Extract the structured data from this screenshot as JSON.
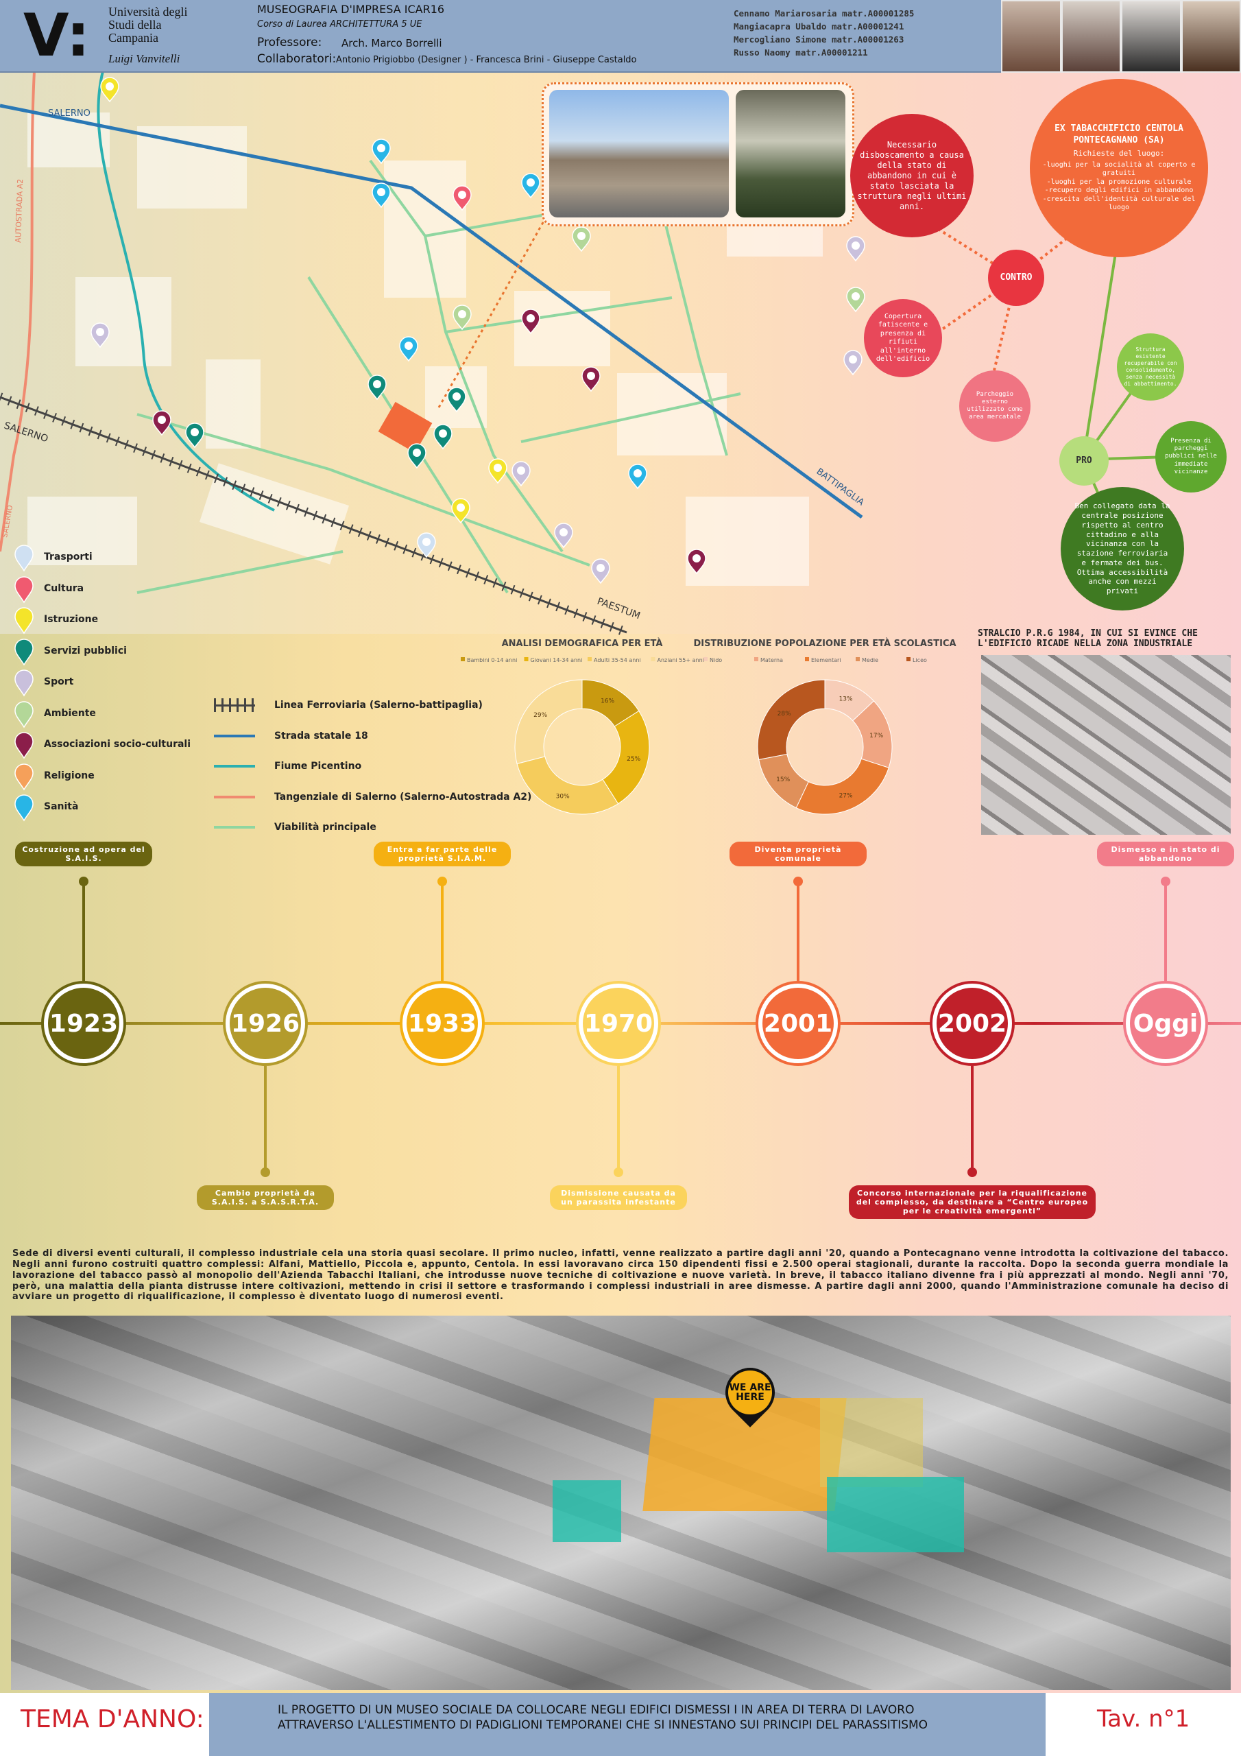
{
  "header": {
    "university": "Università degli Studi della Campania",
    "university_sub": "Luigi Vanvitelli",
    "course_title": "MUSEOGRAFIA D'IMPRESA ICAR16",
    "degree": "Corso di Laurea ARCHITETTURA 5 UE",
    "professor_label": "Professore:",
    "professor": "Arch. Marco Borrelli",
    "collaborators_label": "Collaboratori:",
    "collaborators": "Antonio Prigiobbo (Designer ) - Francesca Brini - Giuseppe Castaldo",
    "students": [
      "Cennamo Mariarosaria matr.A00001285",
      "Mangiacapra Ubaldo matr.A00001241",
      "Mercogliano Simone matr.A00001263",
      "Russo Naomy matr.A00001211"
    ]
  },
  "map": {
    "labels": [
      "SALERNO",
      "AUTOSTRADA A2",
      "SALERNO",
      "SALERNO",
      "BATTIPAGLIA",
      "PAESTUM"
    ]
  },
  "analysis": {
    "main_title": "EX TABACCHIFICIO CENTOLA PONTECAGNANO (SA)",
    "main_subtitle": "Richieste del luogo:",
    "main_lines": [
      "-luoghi per la socialità al coperto e gratuiti",
      "-luoghi per la promozione culturale",
      "-recupero degli edifici in abbandono",
      "-crescita dell'identità culturale del luogo"
    ],
    "contro_label": "CONTRO",
    "contro": [
      "Necessario disboscamento a causa della stato di abbandono in cui è stato lasciata la struttura negli ultimi anni.",
      "Copertura fatiscente e presenza di rifiuti all'interno dell'edificio",
      "Parcheggio esterno utilizzato come area mercatale"
    ],
    "pro_label": "PRO",
    "pro": [
      "Struttura esistente recuperabile con consolidamento, senza necessità di abbattimento.",
      "Presenza di parcheggi pubblici nelle immediate vicinanze",
      "Ben collegato data la centrale posizione rispetto al centro cittadino e alla vicinanza con la stazione ferroviaria e fermate dei bus. Ottima accessibilità anche con mezzi privati"
    ]
  },
  "legend": {
    "poi": [
      {
        "label": "Trasporti",
        "color": "#cfe0f2"
      },
      {
        "label": "Cultura",
        "color": "#f05a70"
      },
      {
        "label": "Istruzione",
        "color": "#f4e42a"
      },
      {
        "label": "Servizi pubblici",
        "color": "#0f8a7a"
      },
      {
        "label": "Sport",
        "color": "#c9c0dc"
      },
      {
        "label": "Ambiente",
        "color": "#b3d798"
      },
      {
        "label": "Associazioni socio-culturali",
        "color": "#8b1e4a"
      },
      {
        "label": "Religione",
        "color": "#f5a05a"
      },
      {
        "label": "Sanità",
        "color": "#28b5e6"
      }
    ],
    "lines": [
      {
        "label": "Linea Ferroviaria (Salerno-battipaglia)",
        "color": "#444444"
      },
      {
        "label": "Strada statale 18",
        "color": "#2a78b5"
      },
      {
        "label": "Fiume Picentino",
        "color": "#2ab0b0"
      },
      {
        "label": "Tangenziale di Salerno (Salerno-Autostrada A2)",
        "color": "#f08a70"
      },
      {
        "label": "Viabilità principale",
        "color": "#8fd6a0"
      }
    ]
  },
  "chart_data": [
    {
      "type": "pie",
      "title": "ANALISI DEMOGRAFICA PER ETÀ",
      "categories": [
        "Bambini 0-14 anni",
        "Giovani 14-34 anni",
        "Adulti 35-54 anni",
        "Anziani 55+ anni"
      ],
      "values": [
        16,
        25,
        30,
        29
      ],
      "value_labels": [
        "16%",
        "25%",
        "30%",
        "29%"
      ],
      "colors": [
        "#c99a10",
        "#e8b511",
        "#f5cc5c",
        "#f9dc98"
      ]
    },
    {
      "type": "pie",
      "title": "DISTRIBUZIONE POPOLAZIONE PER ETÀ SCOLASTICA",
      "categories": [
        "Nido",
        "Materna",
        "Elementari",
        "Medie",
        "Liceo"
      ],
      "values": [
        13,
        17,
        27,
        15,
        28
      ],
      "value_labels": [
        "13%",
        "17%",
        "27%",
        "15%",
        "28%"
      ],
      "colors": [
        "#f7cdb8",
        "#f0a582",
        "#e87a30",
        "#e0905a",
        "#b8571f"
      ]
    }
  ],
  "prg": {
    "title": "STRALCIO P.R.G 1984, IN CUI SI EVINCE CHE L'EDIFICIO RICADE NELLA ZONA INDUSTRIALE"
  },
  "timeline": {
    "events": [
      {
        "year": "1923",
        "label": "Costruzione ad opera del S.A.I.S.",
        "color": "#6a6410",
        "side": "up"
      },
      {
        "year": "1926",
        "label": "Cambio proprietà da S.A.I.S. a S.A.S.R.T.A.",
        "color": "#b39b2c",
        "side": "down"
      },
      {
        "year": "1933",
        "label": "Entra a far parte delle proprietà S.I.A.M.",
        "color": "#f5b012",
        "side": "up"
      },
      {
        "year": "1970",
        "label": "Dismissione causata da un parassita infestante",
        "color": "#fbd35c",
        "side": "down"
      },
      {
        "year": "2001",
        "label": "Diventa proprietà comunale",
        "color": "#f26a3a",
        "side": "up"
      },
      {
        "year": "2002",
        "label": "Concorso internazionale per la riqualificazione del complesso, da destinare a “Centro europeo per le creatività emergenti”",
        "color": "#c0202a",
        "side": "down"
      },
      {
        "year": "Oggi",
        "label": "Dismesso e in stato di abbandono",
        "color": "#f27c8a",
        "side": "up"
      }
    ]
  },
  "description": "Sede di diversi eventi culturali, il complesso industriale cela una storia quasi secolare. Il primo nucleo, infatti, venne realizzato a partire dagli anni '20, quando a Pontecagnano venne introdotta la coltivazione del tabacco. Negli anni furono costruiti quattro complessi: Alfani, Mattiello, Piccola e, appunto, Centola. In essi lavoravano circa 150 dipendenti fissi e 2.500 operai stagionali, durante la raccolta. Dopo la seconda guerra mondiale la lavorazione del tabacco passò al monopolio dell'Azienda Tabacchi Italiani, che introdusse nuove tecniche di coltivazione e nuove varietà. In breve, il tabacco italiano divenne fra i più apprezzati al mondo. Negli anni '70, però, una malattia della pianta distrusse intere coltivazioni, mettendo in crisi il settore e trasformando i complessi industriali in aree dismesse. A partire dagli anni 2000, quando l'Amministrazione comunale ha deciso di avviare un progetto di riqualificazione, il complesso è diventato luogo di numerosi eventi.",
  "aerial": {
    "marker": "WE ARE HERE"
  },
  "footer": {
    "theme_label": "TEMA D'ANNO:",
    "theme": "IL PROGETTO DI UN MUSEO SOCIALE DA COLLOCARE NEGLI EDIFICI DISMESSI I IN AREA DI TERRA DI LAVORO ATTRAVERSO L'ALLESTIMENTO DI PADIGLIONI TEMPORANEI CHE SI INNESTANO SUI PRINCIPI DEL PARASSITISMO",
    "sheet": "Tav. n°1"
  }
}
